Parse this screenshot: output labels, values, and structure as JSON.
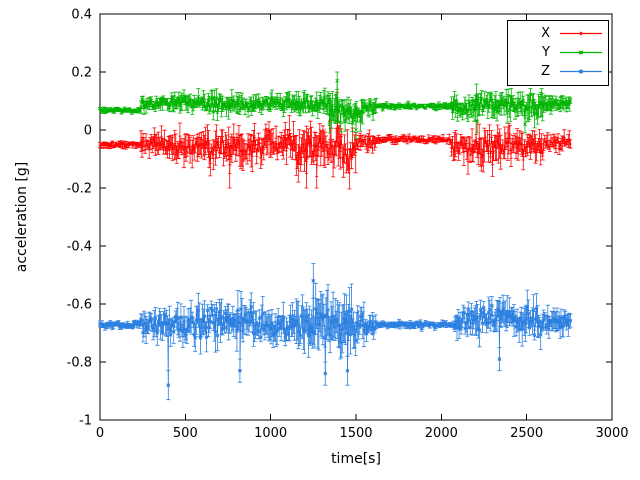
{
  "chart_data": {
    "type": "line",
    "style": "errorbars",
    "title": "",
    "xlabel": "time[s]",
    "ylabel": "acceleration [g]",
    "xlim": [
      0,
      3000
    ],
    "ylim": [
      -1,
      0.4
    ],
    "xtick_values": [
      0,
      500,
      1000,
      1500,
      2000,
      2500,
      3000
    ],
    "xtick_labels": [
      "0",
      "500",
      "1000",
      "1500",
      "2000",
      "2500",
      "3000"
    ],
    "ytick_values": [
      0.4,
      0.2,
      0,
      -0.2,
      -0.4,
      -0.6,
      -0.8,
      -1
    ],
    "ytick_labels": [
      "0.4",
      "0.2",
      "0",
      "-0.2",
      "-0.4",
      "-0.6",
      "-0.8",
      "-1"
    ],
    "grid": false,
    "legend_position": "top-right",
    "frame_color": "#000000",
    "background": "#ffffff",
    "sample_step_s": 6,
    "seed": 1337,
    "series": [
      {
        "name": "X",
        "color": "#ff0000",
        "marker": "plus",
        "baseline": -0.05,
        "segments": [
          [
            0,
            240,
            -0.05,
            0.006,
            0.012
          ],
          [
            240,
            420,
            -0.05,
            0.02,
            0.04
          ],
          [
            420,
            640,
            -0.055,
            0.025,
            0.05
          ],
          [
            640,
            900,
            -0.06,
            0.035,
            0.06
          ],
          [
            900,
            1150,
            -0.05,
            0.03,
            0.05
          ],
          [
            1150,
            1500,
            -0.06,
            0.04,
            0.07
          ],
          [
            1500,
            1620,
            -0.04,
            0.015,
            0.03
          ],
          [
            1620,
            2060,
            -0.032,
            0.006,
            0.012
          ],
          [
            2060,
            2180,
            -0.05,
            0.03,
            0.05
          ],
          [
            2180,
            2420,
            -0.05,
            0.035,
            0.06
          ],
          [
            2420,
            2600,
            -0.06,
            0.03,
            0.05
          ],
          [
            2600,
            2760,
            -0.04,
            0.015,
            0.03
          ]
        ],
        "spikes": [
          [
            760,
            -0.15,
            0.05
          ],
          [
            1210,
            -0.15,
            0.05
          ],
          [
            1270,
            -0.16,
            0.04
          ],
          [
            1390,
            0.1,
            0.03
          ],
          [
            2300,
            -0.12,
            0.04
          ]
        ]
      },
      {
        "name": "Y",
        "color": "#00b400",
        "marker": "x",
        "baseline": 0.08,
        "segments": [
          [
            0,
            240,
            0.068,
            0.005,
            0.01
          ],
          [
            240,
            420,
            0.09,
            0.012,
            0.025
          ],
          [
            420,
            640,
            0.095,
            0.015,
            0.03
          ],
          [
            640,
            900,
            0.09,
            0.018,
            0.035
          ],
          [
            900,
            1150,
            0.095,
            0.015,
            0.03
          ],
          [
            1150,
            1350,
            0.09,
            0.02,
            0.04
          ],
          [
            1350,
            1430,
            0.07,
            0.025,
            0.05
          ],
          [
            1430,
            1540,
            0.06,
            0.02,
            0.04
          ],
          [
            1540,
            1620,
            0.08,
            0.015,
            0.03
          ],
          [
            1620,
            2060,
            0.082,
            0.005,
            0.01
          ],
          [
            2060,
            2200,
            0.08,
            0.02,
            0.04
          ],
          [
            2200,
            2420,
            0.09,
            0.022,
            0.045
          ],
          [
            2420,
            2600,
            0.08,
            0.025,
            0.05
          ],
          [
            2600,
            2760,
            0.09,
            0.012,
            0.03
          ]
        ],
        "spikes": [
          [
            1345,
            0.02,
            0.03
          ],
          [
            1390,
            0.17,
            0.03
          ],
          [
            1500,
            0.0,
            0.03
          ],
          [
            2210,
            0.03,
            0.04
          ],
          [
            2490,
            0.02,
            0.03
          ]
        ]
      },
      {
        "name": "Z",
        "color": "#2a7fe0",
        "marker": "star",
        "baseline": -0.67,
        "segments": [
          [
            0,
            240,
            -0.672,
            0.006,
            0.012
          ],
          [
            240,
            420,
            -0.67,
            0.028,
            0.05
          ],
          [
            420,
            640,
            -0.665,
            0.032,
            0.06
          ],
          [
            640,
            900,
            -0.655,
            0.038,
            0.07
          ],
          [
            900,
            1150,
            -0.67,
            0.033,
            0.06
          ],
          [
            1150,
            1550,
            -0.67,
            0.045,
            0.09
          ],
          [
            1550,
            1620,
            -0.68,
            0.018,
            0.04
          ],
          [
            1620,
            2080,
            -0.672,
            0.006,
            0.012
          ],
          [
            2080,
            2200,
            -0.66,
            0.028,
            0.05
          ],
          [
            2200,
            2420,
            -0.645,
            0.033,
            0.06
          ],
          [
            2420,
            2600,
            -0.66,
            0.033,
            0.06
          ],
          [
            2600,
            2760,
            -0.665,
            0.018,
            0.04
          ]
        ],
        "spikes": [
          [
            400,
            -0.88,
            0.05
          ],
          [
            820,
            -0.83,
            0.04
          ],
          [
            1250,
            -0.52,
            0.06
          ],
          [
            1320,
            -0.84,
            0.04
          ],
          [
            1450,
            -0.83,
            0.05
          ],
          [
            2340,
            -0.79,
            0.04
          ]
        ]
      }
    ]
  }
}
